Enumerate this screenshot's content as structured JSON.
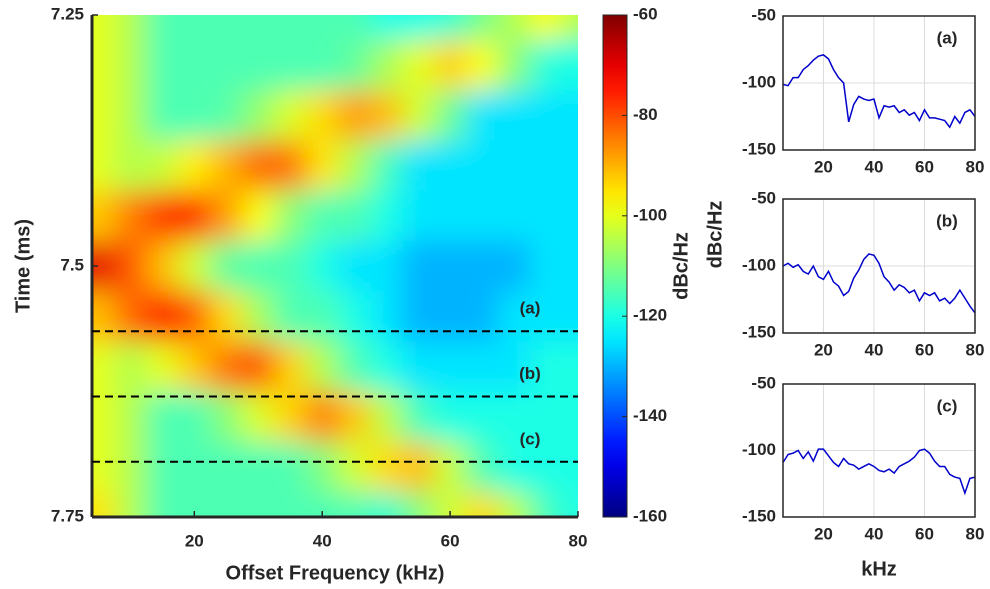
{
  "chart_data": [
    {
      "type": "heatmap",
      "xlabel": "Offset Frequency (kHz)",
      "ylabel": "Time (ms)",
      "x": [
        5,
        10,
        15,
        20,
        25,
        30,
        35,
        40,
        45,
        50,
        55,
        60,
        65,
        70,
        75,
        80
      ],
      "y": [
        7.25,
        7.3,
        7.35,
        7.4,
        7.45,
        7.5,
        7.55,
        7.6,
        7.65,
        7.7,
        7.75
      ],
      "z": [
        [
          -100,
          -105,
          -115,
          -115,
          -115,
          -115,
          -115,
          -115,
          -115,
          -120,
          -120,
          -118,
          -111,
          -105,
          -98,
          -105
        ],
        [
          -100,
          -105,
          -115,
          -115,
          -115,
          -115,
          -115,
          -115,
          -113,
          -106,
          -100,
          -93,
          -98,
          -109,
          -119,
          -120
        ],
        [
          -100,
          -105,
          -115,
          -115,
          -114,
          -108,
          -101,
          -94,
          -88,
          -91,
          -102,
          -112,
          -125,
          -125,
          -125,
          -125
        ],
        [
          -100,
          -105,
          -103,
          -96,
          -90,
          -83,
          -84,
          -95,
          -105,
          -116,
          -125,
          -125,
          -125,
          -125,
          -125,
          -125
        ],
        [
          -92,
          -85,
          -78,
          -77,
          -88,
          -98,
          -109,
          -115,
          -115,
          -120,
          -125,
          -125,
          -125,
          -125,
          -125,
          -125
        ],
        [
          -70,
          -81,
          -91,
          -102,
          -113,
          -115,
          -115,
          -120,
          -125,
          -125,
          -130,
          -130,
          -130,
          -130,
          -125,
          -125
        ],
        [
          -91,
          -83,
          -75,
          -82,
          -94,
          -106,
          -115,
          -115,
          -120,
          -125,
          -130,
          -130,
          -130,
          -125,
          -125,
          -125
        ],
        [
          -100,
          -105,
          -100,
          -92,
          -84,
          -81,
          -93,
          -105,
          -115,
          -120,
          -125,
          -125,
          -125,
          -125,
          -120,
          -120
        ],
        [
          -100,
          -105,
          -115,
          -115,
          -109,
          -101,
          -93,
          -85,
          -92,
          -104,
          -116,
          -120,
          -120,
          -120,
          -120,
          -120
        ],
        [
          -100,
          -105,
          -115,
          -115,
          -115,
          -115,
          -115,
          -110,
          -102,
          -94,
          -91,
          -103,
          -115,
          -120,
          -120,
          -120
        ],
        [
          -95,
          -105,
          -115,
          -115,
          -115,
          -115,
          -115,
          -115,
          -115,
          -118,
          -110,
          -102,
          -94,
          -104,
          -116,
          -120
        ]
      ],
      "xlim": [
        4,
        80
      ],
      "ylim": [
        7.75,
        7.25
      ],
      "xticks": [
        20,
        40,
        60,
        80
      ],
      "yticks": [
        7.25,
        7.5,
        7.75
      ],
      "colormap": "jet",
      "clim": [
        -160,
        -60
      ],
      "cticks": [
        -60,
        -80,
        -100,
        -120,
        -140,
        -160
      ],
      "colorbar_label": "dBc/Hz",
      "markers": [
        {
          "label": "(a)",
          "time": 7.565
        },
        {
          "label": "(b)",
          "time": 7.63
        },
        {
          "label": "(c)",
          "time": 7.695
        }
      ]
    },
    {
      "type": "line",
      "panel_label": "(a)",
      "x": [
        4,
        6,
        8,
        10,
        12,
        14,
        16,
        18,
        20,
        22,
        24,
        26,
        28,
        30,
        32,
        34,
        36,
        38,
        40,
        42,
        44,
        46,
        48,
        50,
        52,
        54,
        56,
        58,
        60,
        62,
        64,
        66,
        68,
        70,
        72,
        74,
        76,
        78,
        80
      ],
      "series": [
        {
          "color": "#0000cc",
          "values": [
            -101,
            -102,
            -96,
            -96,
            -90,
            -87,
            -83,
            -80,
            -79,
            -82,
            -90,
            -96,
            -100,
            -129,
            -116,
            -110,
            -112,
            -113,
            -112,
            -126,
            -117,
            -118,
            -117,
            -122,
            -120,
            -124,
            -122,
            -128,
            -120,
            -126,
            -126,
            -127,
            -128,
            -133,
            -125,
            -130,
            -122,
            -120,
            -125
          ]
        }
      ],
      "xlim": [
        4,
        80
      ],
      "ylim": [
        -150,
        -50
      ],
      "xticks": [
        20,
        40,
        60,
        80
      ],
      "yticks": [
        -50,
        -100,
        -150
      ],
      "grid": true
    },
    {
      "type": "line",
      "panel_label": "(b)",
      "ylabel": "dBc/Hz",
      "x": [
        4,
        6,
        8,
        10,
        12,
        14,
        16,
        18,
        20,
        22,
        24,
        26,
        28,
        30,
        32,
        34,
        36,
        38,
        40,
        42,
        44,
        46,
        48,
        50,
        52,
        54,
        56,
        58,
        60,
        62,
        64,
        66,
        68,
        70,
        72,
        74,
        76,
        78,
        80
      ],
      "series": [
        {
          "color": "#0000cc",
          "values": [
            -100,
            -98,
            -101,
            -99,
            -104,
            -106,
            -100,
            -108,
            -110,
            -104,
            -112,
            -115,
            -122,
            -119,
            -109,
            -103,
            -95,
            -91,
            -92,
            -98,
            -108,
            -112,
            -118,
            -114,
            -116,
            -120,
            -118,
            -126,
            -120,
            -122,
            -120,
            -126,
            -124,
            -128,
            -124,
            -118,
            -124,
            -130,
            -135
          ]
        }
      ],
      "xlim": [
        4,
        80
      ],
      "ylim": [
        -150,
        -50
      ],
      "xticks": [
        20,
        40,
        60,
        80
      ],
      "yticks": [
        -50,
        -100,
        -150
      ],
      "grid": true
    },
    {
      "type": "line",
      "panel_label": "(c)",
      "xlabel": "kHz",
      "x": [
        4,
        6,
        8,
        10,
        12,
        14,
        16,
        18,
        20,
        22,
        24,
        26,
        28,
        30,
        32,
        34,
        36,
        38,
        40,
        42,
        44,
        46,
        48,
        50,
        52,
        54,
        56,
        58,
        60,
        62,
        64,
        66,
        68,
        70,
        72,
        74,
        76,
        78,
        80
      ],
      "series": [
        {
          "color": "#0000cc",
          "values": [
            -109,
            -103,
            -102,
            -100,
            -106,
            -101,
            -108,
            -99,
            -99,
            -104,
            -109,
            -112,
            -106,
            -110,
            -111,
            -114,
            -112,
            -110,
            -112,
            -115,
            -116,
            -114,
            -117,
            -112,
            -110,
            -108,
            -105,
            -100,
            -99,
            -102,
            -108,
            -112,
            -112,
            -118,
            -120,
            -121,
            -132,
            -121,
            -120
          ]
        }
      ],
      "xlim": [
        4,
        80
      ],
      "ylim": [
        -150,
        -50
      ],
      "xticks": [
        20,
        40,
        60,
        80
      ],
      "yticks": [
        -50,
        -100,
        -150
      ],
      "grid": true
    }
  ]
}
